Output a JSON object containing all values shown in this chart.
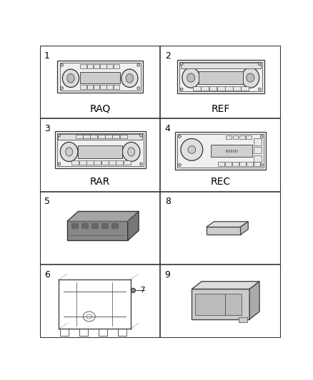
{
  "background": "#ffffff",
  "grid_line_color": "#333333",
  "num_fontsize": 9,
  "label_fontsize": 10,
  "fig_width": 4.38,
  "fig_height": 5.33,
  "border_color": "#222222",
  "sketch_dark": "#222222",
  "sketch_mid": "#666666",
  "sketch_light": "#aaaaaa",
  "sketch_lighter": "#cccccc",
  "cells": [
    {
      "num": "1",
      "label": "RAQ",
      "col": 0,
      "row": 0
    },
    {
      "num": "2",
      "label": "REF",
      "col": 1,
      "row": 0
    },
    {
      "num": "3",
      "label": "RAR",
      "col": 0,
      "row": 1
    },
    {
      "num": "4",
      "label": "REC",
      "col": 1,
      "row": 1
    },
    {
      "num": "5",
      "label": "",
      "col": 0,
      "row": 2
    },
    {
      "num": "8",
      "label": "",
      "col": 1,
      "row": 2
    },
    {
      "num": "6",
      "label": "",
      "col": 0,
      "row": 3
    },
    {
      "num": "7",
      "label": "",
      "col": 0,
      "row": 3
    },
    {
      "num": "9",
      "label": "",
      "col": 1,
      "row": 3
    }
  ]
}
